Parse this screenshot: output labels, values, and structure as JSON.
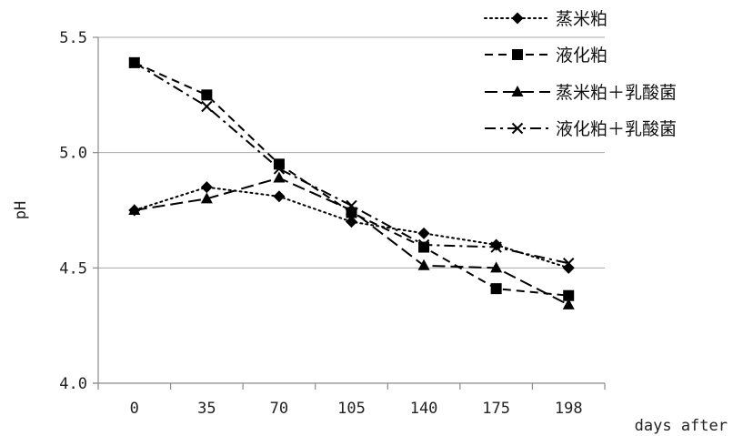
{
  "chart_data": {
    "type": "line",
    "title": "",
    "xlabel": "days after",
    "ylabel": "pH",
    "categories": [
      "0",
      "35",
      "70",
      "105",
      "140",
      "175",
      "198"
    ],
    "ylim": [
      4.0,
      5.5
    ],
    "yticks": [
      "4.0",
      "4.5",
      "5.0",
      "5.5"
    ],
    "grid": "horizontal",
    "legend_position": "top-right",
    "series": [
      {
        "name": "蒸米粕",
        "values": [
          4.75,
          4.85,
          4.81,
          4.7,
          4.65,
          4.6,
          4.5
        ],
        "marker": "diamond",
        "dash": "dotted",
        "color": "#000000"
      },
      {
        "name": "液化粕",
        "values": [
          5.39,
          5.25,
          4.95,
          4.74,
          4.59,
          4.41,
          4.38
        ],
        "marker": "square",
        "dash": "dashed",
        "color": "#000000"
      },
      {
        "name": "蒸米粕＋乳酸菌",
        "values": [
          4.75,
          4.8,
          4.89,
          4.75,
          4.51,
          4.5,
          4.34
        ],
        "marker": "triangle",
        "dash": "longdash",
        "color": "#000000"
      },
      {
        "name": "液化粕＋乳酸菌",
        "values": [
          5.39,
          5.2,
          4.93,
          4.77,
          4.6,
          4.59,
          4.52
        ],
        "marker": "x",
        "dash": "dashdot",
        "color": "#000000"
      }
    ]
  }
}
